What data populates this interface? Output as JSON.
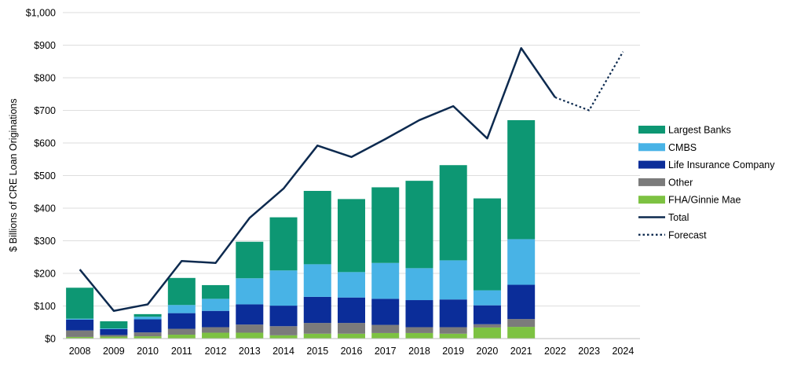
{
  "chart_data": {
    "type": "bar",
    "stacked": true,
    "title": "",
    "xlabel": "",
    "ylabel": "$ Billions of CRE Loan Originations",
    "ylim": [
      0,
      1000
    ],
    "yticks": [
      0,
      100,
      200,
      300,
      400,
      500,
      600,
      700,
      800,
      900,
      1000
    ],
    "ytick_labels": [
      "$0",
      "$100",
      "$200",
      "$300",
      "$400",
      "$500",
      "$600",
      "$700",
      "$800",
      "$900",
      "$1,000"
    ],
    "grid": true,
    "legend_position": "right",
    "categories": [
      "2008",
      "2009",
      "2010",
      "2011",
      "2012",
      "2013",
      "2014",
      "2015",
      "2016",
      "2017",
      "2018",
      "2019",
      "2020",
      "2021",
      "2022",
      "2023",
      "2024"
    ],
    "series": [
      {
        "name": "FHA/Ginnie Mae",
        "color": "#7dc242",
        "values": [
          5,
          6,
          7,
          12,
          18,
          18,
          10,
          15,
          15,
          17,
          17,
          15,
          34,
          36,
          null,
          null,
          null
        ]
      },
      {
        "name": "Other",
        "color": "#7b7b7b",
        "values": [
          20,
          5,
          12,
          18,
          17,
          25,
          28,
          33,
          33,
          25,
          18,
          20,
          10,
          24,
          null,
          null,
          null
        ]
      },
      {
        "name": "Life Insurance Company",
        "color": "#0b2d99",
        "values": [
          33,
          18,
          40,
          48,
          50,
          62,
          63,
          80,
          78,
          80,
          83,
          85,
          58,
          105,
          null,
          null,
          null
        ]
      },
      {
        "name": "CMBS",
        "color": "#48b3e6",
        "values": [
          3,
          2,
          8,
          25,
          37,
          80,
          108,
          100,
          78,
          110,
          98,
          120,
          46,
          140,
          null,
          null,
          null
        ]
      },
      {
        "name": "Largest Banks",
        "color": "#0d9773",
        "values": [
          95,
          22,
          8,
          83,
          42,
          112,
          163,
          225,
          224,
          232,
          268,
          292,
          282,
          365,
          null,
          null,
          null
        ]
      }
    ],
    "lines": [
      {
        "name": "Total",
        "color": "#0d2a4f",
        "style": "solid",
        "values": [
          212,
          85,
          105,
          238,
          232,
          370,
          460,
          592,
          557,
          612,
          670,
          713,
          614,
          891,
          740,
          null,
          null
        ]
      },
      {
        "name": "Forecast",
        "color": "#0d2a4f",
        "style": "dotted",
        "values": [
          null,
          null,
          null,
          null,
          null,
          null,
          null,
          null,
          null,
          null,
          null,
          null,
          null,
          null,
          740,
          700,
          880
        ]
      }
    ],
    "legend_order": [
      "Largest Banks",
      "CMBS",
      "Life Insurance Company",
      "Other",
      "FHA/Ginnie Mae",
      "Total",
      "Forecast"
    ]
  }
}
